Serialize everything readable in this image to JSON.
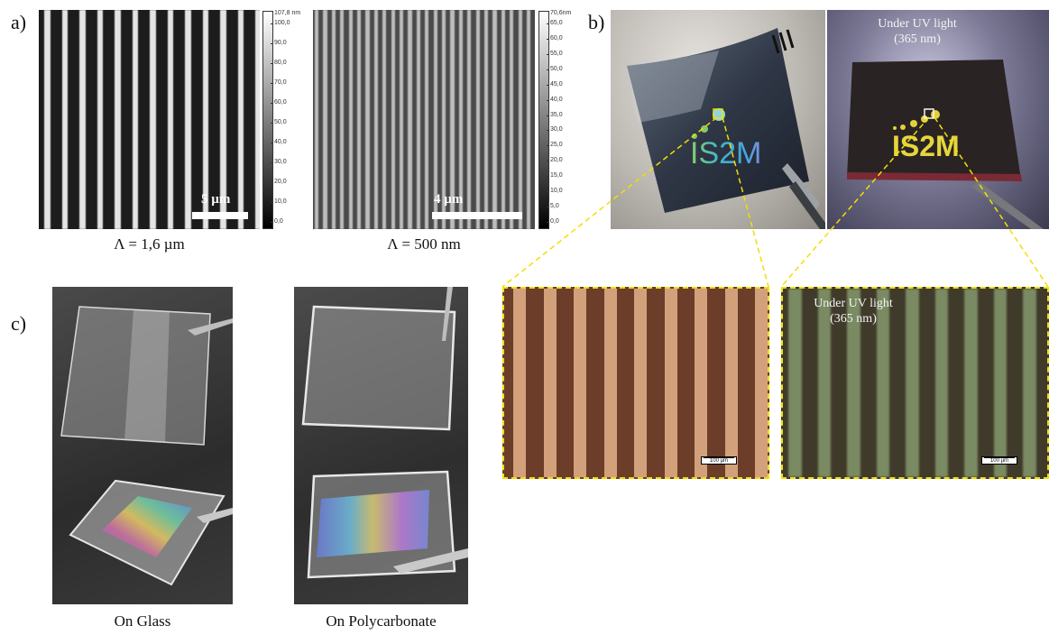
{
  "panels": {
    "a": {
      "label": "a)",
      "images": [
        {
          "scale_text": "5 µm",
          "caption": "Λ = 1,6 µm",
          "colorbar_max": "107,8 nm",
          "colorbar_ticks": [
            "100,0",
            "90,0",
            "80,0",
            "70,0",
            "60,0",
            "50,0",
            "40,0",
            "30,0",
            "20,0",
            "10,0",
            "0,0"
          ]
        },
        {
          "scale_text": "4 µm",
          "caption": "Λ = 500 nm",
          "colorbar_max": "70,6nm",
          "colorbar_ticks": [
            "65,0",
            "60,0",
            "55,0",
            "50,0",
            "45,0",
            "40,0",
            "35,0",
            "30,0",
            "25,0",
            "20,0",
            "15,0",
            "10,0",
            "5,0",
            "0,0"
          ]
        }
      ]
    },
    "b": {
      "label": "b)",
      "photo_text": "IS2M",
      "uv_label_line1": "Under UV light",
      "uv_label_line2": "(365 nm)",
      "micro_uv_line1": "Under UV light",
      "micro_uv_line2": "(365 nm)",
      "micro_scale_1": "100 µm",
      "micro_scale_2": "100 µm"
    },
    "c": {
      "label": "c)",
      "caption_glass": "On Glass",
      "caption_polycarbonate": "On Polycarbonate"
    }
  },
  "colors": {
    "highlight": "#f1e000",
    "fluorescence": "#d8c838"
  }
}
